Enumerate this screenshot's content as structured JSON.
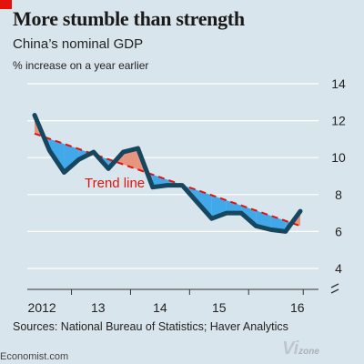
{
  "header": {
    "title": "More stumble than strength",
    "subtitle": "China’s nominal GDP",
    "units": "% increase on a year earlier"
  },
  "footer": {
    "source": "Sources: National Bureau of Statistics; Haver Analytics",
    "brand": "Economist.com",
    "watermark_main": "Vi",
    "watermark_sub": "zone"
  },
  "colors": {
    "background": "#d9e5ec",
    "series": "#17465f",
    "trend": "#e3120b",
    "fill_above": "#e8957f",
    "fill_below": "#41a9e9",
    "grid": "#ffffff"
  },
  "chart_data": {
    "type": "line",
    "title": "China’s nominal GDP",
    "ylabel": "% increase on a year earlier",
    "ylim": [
      4,
      14
    ],
    "ytick_side": "right",
    "yticks": [
      "4",
      "6",
      "8",
      "10",
      "12",
      "14"
    ],
    "xtick_labels": [
      "2012",
      "13",
      "14",
      "15",
      "16"
    ],
    "axis_break": true,
    "series": [
      {
        "x": [
          "2011Q4",
          "2012Q1",
          "2012Q2",
          "2012Q3",
          "2012Q4",
          "2013Q1",
          "2013Q2",
          "2013Q3",
          "2013Q4",
          "2014Q1",
          "2014Q2",
          "2014Q3",
          "2014Q4",
          "2015Q1",
          "2015Q2",
          "2015Q3",
          "2015Q4",
          "2016Q1",
          "2016Q2"
        ],
        "values": [
          12.3,
          10.4,
          9.2,
          9.9,
          10.3,
          9.4,
          10.3,
          10.5,
          8.4,
          8.5,
          8.5,
          7.6,
          6.7,
          7.0,
          7.0,
          6.3,
          6.1,
          6.0,
          7.1
        ]
      }
    ],
    "trend": {
      "name": "Trend line",
      "start": 11.3,
      "end": 6.3
    }
  }
}
